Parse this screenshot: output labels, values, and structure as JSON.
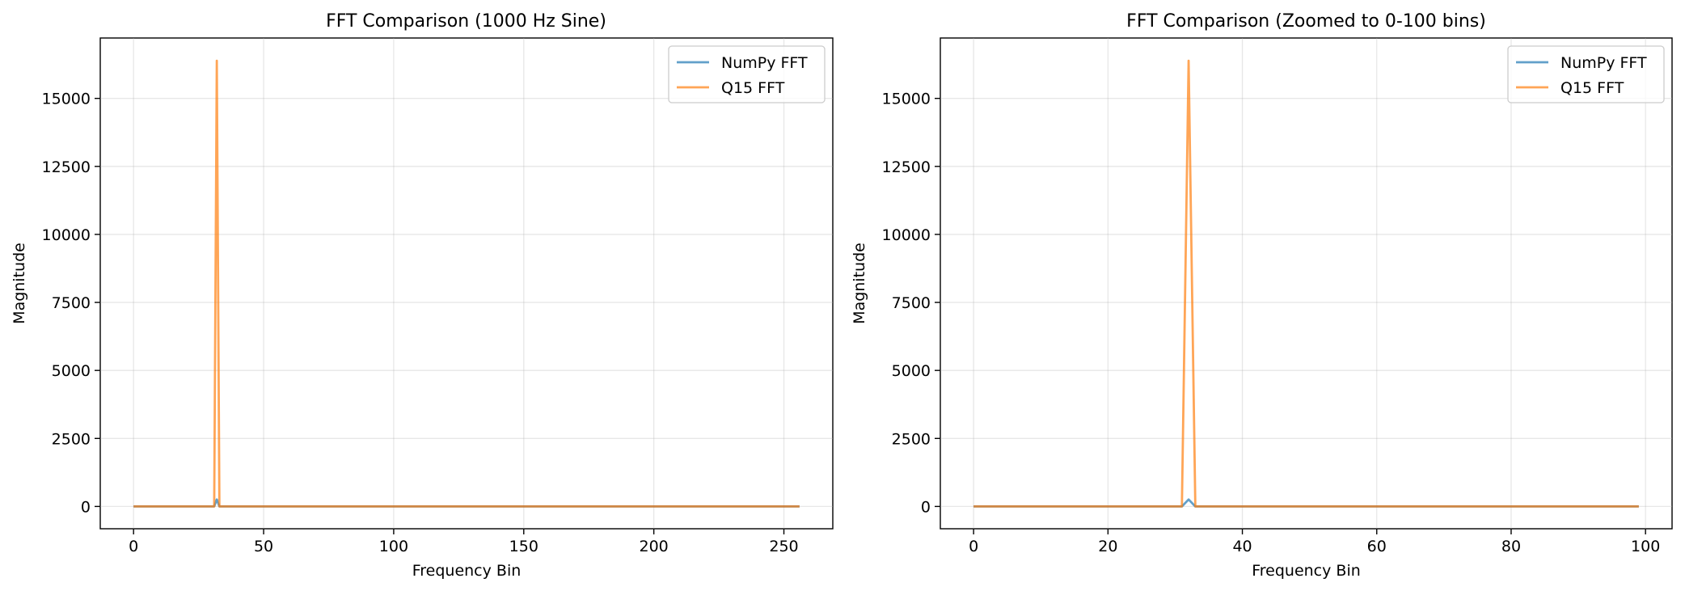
{
  "chart_data": [
    {
      "type": "line",
      "title": "FFT Comparison (1000 Hz Sine)",
      "xlabel": "Frequency Bin",
      "ylabel": "Magnitude",
      "xlim": [
        -12.8,
        268.8
      ],
      "ylim": [
        -820,
        17220
      ],
      "xticks": [
        0,
        50,
        100,
        150,
        200,
        250
      ],
      "yticks": [
        0,
        2500,
        5000,
        7500,
        10000,
        12500,
        15000
      ],
      "grid": true,
      "legend_position": "top-right",
      "series": [
        {
          "name": "NumPy FFT",
          "color": "#1f77b4",
          "points": [
            [
              0,
              0
            ],
            [
              31,
              0
            ],
            [
              32,
              256
            ],
            [
              33,
              0
            ],
            [
              256,
              0
            ]
          ]
        },
        {
          "name": "Q15 FFT",
          "color": "#ff7f0e",
          "points": [
            [
              0,
              0
            ],
            [
              31,
              0
            ],
            [
              32,
              16384
            ],
            [
              33,
              0
            ],
            [
              256,
              0
            ]
          ]
        }
      ]
    },
    {
      "type": "line",
      "title": "FFT Comparison (Zoomed to 0-100 bins)",
      "xlabel": "Frequency Bin",
      "ylabel": "Magnitude",
      "xlim": [
        -4.95,
        103.95
      ],
      "ylim": [
        -820,
        17220
      ],
      "xticks": [
        0,
        20,
        40,
        60,
        80,
        100
      ],
      "yticks": [
        0,
        2500,
        5000,
        7500,
        10000,
        12500,
        15000
      ],
      "grid": true,
      "legend_position": "top-right",
      "series": [
        {
          "name": "NumPy FFT",
          "color": "#1f77b4",
          "points": [
            [
              0,
              0
            ],
            [
              31,
              0
            ],
            [
              32,
              256
            ],
            [
              33,
              0
            ],
            [
              99,
              0
            ]
          ]
        },
        {
          "name": "Q15 FFT",
          "color": "#ff7f0e",
          "points": [
            [
              0,
              0
            ],
            [
              31,
              0
            ],
            [
              32,
              16384
            ],
            [
              33,
              0
            ],
            [
              99,
              0
            ]
          ]
        }
      ]
    }
  ]
}
